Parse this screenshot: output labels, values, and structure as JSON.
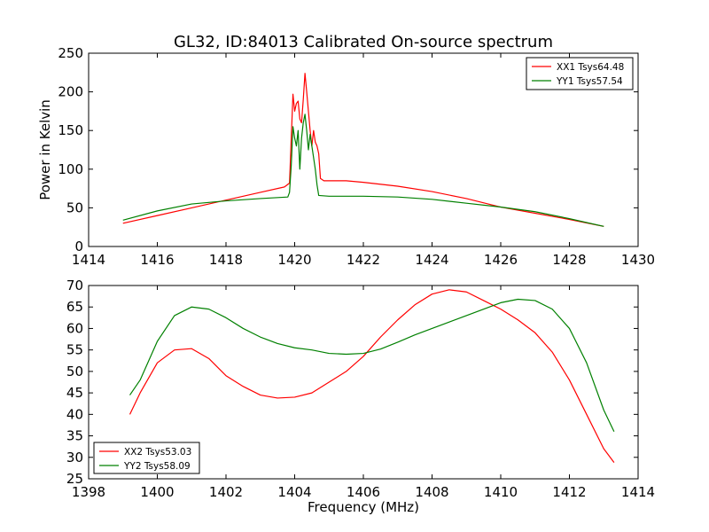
{
  "title": "GL32, ID:84013 Calibrated On-source spectrum",
  "chart_data": [
    {
      "type": "line",
      "title": "GL32, ID:84013 Calibrated On-source spectrum",
      "xlabel": "",
      "ylabel": "Power in Kelvin",
      "xlim": [
        1414,
        1430
      ],
      "ylim": [
        0,
        250
      ],
      "xticks": [
        1414,
        1416,
        1418,
        1420,
        1422,
        1424,
        1426,
        1428,
        1430
      ],
      "yticks": [
        0,
        50,
        100,
        150,
        200,
        250
      ],
      "grid": false,
      "legend_position": "top-right",
      "series": [
        {
          "name": "XX1 Tsys64.48",
          "color": "#ff0000",
          "points": [
            [
              1415,
              30
            ],
            [
              1416,
              40
            ],
            [
              1417,
              50
            ],
            [
              1418,
              60
            ],
            [
              1419,
              70
            ],
            [
              1419.7,
              77
            ],
            [
              1419.85,
              82
            ],
            [
              1419.9,
              140
            ],
            [
              1419.95,
              197
            ],
            [
              1420.0,
              175
            ],
            [
              1420.05,
              185
            ],
            [
              1420.1,
              188
            ],
            [
              1420.15,
              165
            ],
            [
              1420.2,
              160
            ],
            [
              1420.25,
              190
            ],
            [
              1420.3,
              224
            ],
            [
              1420.35,
              200
            ],
            [
              1420.4,
              175
            ],
            [
              1420.45,
              150
            ],
            [
              1420.5,
              130
            ],
            [
              1420.55,
              150
            ],
            [
              1420.6,
              135
            ],
            [
              1420.65,
              130
            ],
            [
              1420.7,
              120
            ],
            [
              1420.75,
              88
            ],
            [
              1420.85,
              85
            ],
            [
              1421.5,
              85
            ],
            [
              1422,
              83
            ],
            [
              1423,
              78
            ],
            [
              1424,
              71
            ],
            [
              1425,
              62
            ],
            [
              1426,
              51
            ],
            [
              1427,
              43
            ],
            [
              1428,
              35
            ],
            [
              1429,
              26
            ]
          ]
        },
        {
          "name": "YY1 Tsys57.54",
          "color": "#008000",
          "points": [
            [
              1415,
              34
            ],
            [
              1416,
              46
            ],
            [
              1417,
              55
            ],
            [
              1418,
              59
            ],
            [
              1419,
              62
            ],
            [
              1419.8,
              64
            ],
            [
              1419.85,
              70
            ],
            [
              1419.9,
              105
            ],
            [
              1419.95,
              155
            ],
            [
              1420.0,
              140
            ],
            [
              1420.05,
              130
            ],
            [
              1420.1,
              150
            ],
            [
              1420.15,
              100
            ],
            [
              1420.2,
              140
            ],
            [
              1420.25,
              160
            ],
            [
              1420.3,
              171
            ],
            [
              1420.35,
              150
            ],
            [
              1420.4,
              125
            ],
            [
              1420.45,
              145
            ],
            [
              1420.5,
              130
            ],
            [
              1420.55,
              115
            ],
            [
              1420.6,
              100
            ],
            [
              1420.65,
              80
            ],
            [
              1420.7,
              66
            ],
            [
              1421,
              65
            ],
            [
              1422,
              65
            ],
            [
              1423,
              64
            ],
            [
              1424,
              61
            ],
            [
              1425,
              56
            ],
            [
              1426,
              51
            ],
            [
              1427,
              45
            ],
            [
              1428,
              36
            ],
            [
              1429,
              26
            ]
          ]
        }
      ]
    },
    {
      "type": "line",
      "title": "",
      "xlabel": "Frequency (MHz)",
      "ylabel": "",
      "xlim": [
        1398,
        1414
      ],
      "ylim": [
        25,
        70
      ],
      "xticks": [
        1398,
        1400,
        1402,
        1404,
        1406,
        1408,
        1410,
        1412,
        1414
      ],
      "yticks": [
        25,
        30,
        35,
        40,
        45,
        50,
        55,
        60,
        65,
        70
      ],
      "grid": false,
      "legend_position": "lower-left",
      "series": [
        {
          "name": "XX2 Tsys53.03",
          "color": "#ff0000",
          "points": [
            [
              1399.2,
              40
            ],
            [
              1399.5,
              45
            ],
            [
              1400,
              52
            ],
            [
              1400.5,
              55
            ],
            [
              1401,
              55.3
            ],
            [
              1401.5,
              53
            ],
            [
              1402,
              49
            ],
            [
              1402.5,
              46.5
            ],
            [
              1403,
              44.5
            ],
            [
              1403.5,
              43.8
            ],
            [
              1404,
              44
            ],
            [
              1404.5,
              45
            ],
            [
              1405,
              47.5
            ],
            [
              1405.5,
              50
            ],
            [
              1406,
              53.5
            ],
            [
              1406.5,
              58
            ],
            [
              1407,
              62
            ],
            [
              1407.5,
              65.5
            ],
            [
              1408,
              68
            ],
            [
              1408.5,
              69
            ],
            [
              1409,
              68.5
            ],
            [
              1409.5,
              66.5
            ],
            [
              1410,
              64.5
            ],
            [
              1410.5,
              62
            ],
            [
              1411,
              59
            ],
            [
              1411.5,
              54.5
            ],
            [
              1412,
              48
            ],
            [
              1412.5,
              40
            ],
            [
              1413,
              32
            ],
            [
              1413.3,
              28.8
            ]
          ]
        },
        {
          "name": "YY2 Tsys58.09",
          "color": "#008000",
          "points": [
            [
              1399.2,
              44.5
            ],
            [
              1399.5,
              48
            ],
            [
              1400,
              57
            ],
            [
              1400.5,
              63
            ],
            [
              1401,
              65
            ],
            [
              1401.5,
              64.5
            ],
            [
              1402,
              62.5
            ],
            [
              1402.5,
              60
            ],
            [
              1403,
              58
            ],
            [
              1403.5,
              56.5
            ],
            [
              1404,
              55.5
            ],
            [
              1404.5,
              55
            ],
            [
              1405,
              54.2
            ],
            [
              1405.5,
              54
            ],
            [
              1406,
              54.2
            ],
            [
              1406.5,
              55.2
            ],
            [
              1407,
              56.8
            ],
            [
              1407.5,
              58.5
            ],
            [
              1408,
              60
            ],
            [
              1408.5,
              61.5
            ],
            [
              1409,
              63
            ],
            [
              1409.5,
              64.5
            ],
            [
              1410,
              66
            ],
            [
              1410.5,
              66.8
            ],
            [
              1411,
              66.5
            ],
            [
              1411.5,
              64.5
            ],
            [
              1412,
              60
            ],
            [
              1412.5,
              52
            ],
            [
              1413,
              41
            ],
            [
              1413.3,
              36
            ]
          ]
        }
      ]
    }
  ]
}
